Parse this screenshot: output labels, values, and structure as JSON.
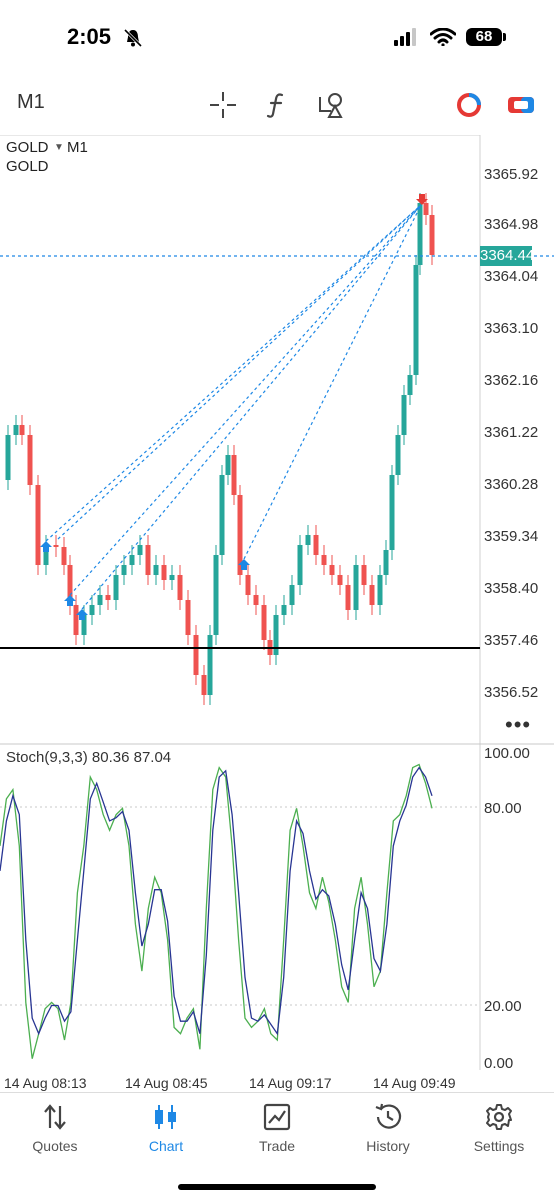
{
  "status_bar": {
    "time": "2:05",
    "battery": "68"
  },
  "toolbar": {
    "timeframe": "M1"
  },
  "chart": {
    "symbol": "GOLD",
    "timeframe": "M1",
    "description": "GOLD",
    "current_price": "3364.44",
    "price_labels": [
      "3365.92",
      "3364.98",
      "3364.04",
      "3363.10",
      "3362.16",
      "3361.22",
      "3360.28",
      "3359.34",
      "3358.40",
      "3357.46",
      "3356.52"
    ],
    "time_labels": [
      "14 Aug 08:13",
      "14 Aug 08:45",
      "14 Aug 09:17",
      "14 Aug 09:49"
    ],
    "colors": {
      "bull": "#26a69a",
      "bear": "#ef5350",
      "trade_line": "#1e88e5",
      "horizontal_line": "#000000"
    }
  },
  "indicator": {
    "name": "Stoch(9,3,3)",
    "main_value": "80.36",
    "signal_value": "87.04",
    "levels": [
      "100.00",
      "80.00",
      "20.00",
      "0.00"
    ],
    "colors": {
      "main": "#4caf50",
      "signal": "#283593"
    }
  },
  "tabs": [
    {
      "label": "Quotes",
      "icon": "quotes-arrows-icon"
    },
    {
      "label": "Chart",
      "icon": "chart-candles-icon"
    },
    {
      "label": "Trade",
      "icon": "trade-icon"
    },
    {
      "label": "History",
      "icon": "history-icon"
    },
    {
      "label": "Settings",
      "icon": "settings-gear-icon"
    }
  ],
  "active_tab": "Chart"
}
